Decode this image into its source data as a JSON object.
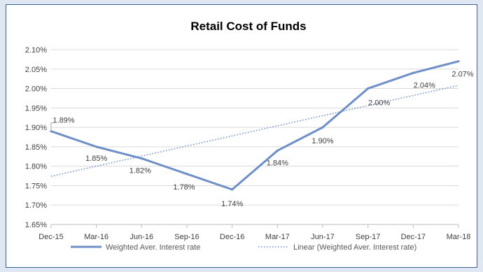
{
  "chart_data": {
    "type": "line",
    "title": "Retail Cost of Funds",
    "xlabel": "",
    "ylabel": "",
    "categories": [
      "Dec-15",
      "Mar-16",
      "Jun-16",
      "Sep-16",
      "Dec-16",
      "Mar-17",
      "Jun-17",
      "Sep-17",
      "Dec-17",
      "Mar-18"
    ],
    "ylim": [
      1.65,
      2.1
    ],
    "yticks": [
      "1.65%",
      "1.70%",
      "1.75%",
      "1.80%",
      "1.85%",
      "1.90%",
      "1.95%",
      "2.00%",
      "2.05%",
      "2.10%"
    ],
    "grid": true,
    "legend_position": "bottom",
    "series": [
      {
        "name": "Weighted Aver. Interest rate",
        "values": [
          1.89,
          1.85,
          1.82,
          1.78,
          1.74,
          1.84,
          1.9,
          2.0,
          2.04,
          2.07
        ],
        "labels": [
          "1.89%",
          "1.85%",
          "1.82%",
          "1.78%",
          "1.74%",
          "1.84%",
          "1.90%",
          "2.00%",
          "2.04%",
          "2.07%"
        ],
        "color": "#6e8fc7",
        "style": "solid"
      },
      {
        "name": "Linear (Weighted Aver. Interest rate)",
        "values": [
          1.774,
          1.8,
          1.826,
          1.852,
          1.878,
          1.904,
          1.93,
          1.956,
          1.982,
          2.008
        ],
        "color": "#6e8fc7",
        "style": "dotted"
      }
    ]
  }
}
